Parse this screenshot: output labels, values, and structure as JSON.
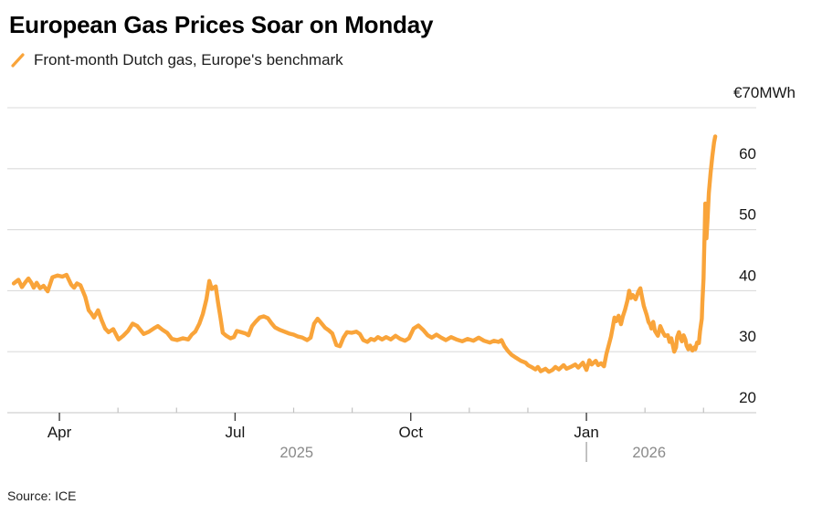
{
  "header": {
    "title": "European Gas Prices Soar on Monday",
    "legend": {
      "label": "Front-month Dutch gas, Europe's benchmark",
      "series_color": "#F9A43A"
    }
  },
  "footer": {
    "source": "Source: ICE"
  },
  "chart_data": {
    "type": "line",
    "title": "European Gas Prices Soar on Monday",
    "subtitle": "Front-month Dutch gas, Europe's benchmark",
    "x_unit": "months since 2025-03-01 (decimal)",
    "y_unit": "EUR/MWh",
    "xlim": [
      0.11,
      12.9
    ],
    "ylim": [
      20,
      70
    ],
    "grid": "horizontal",
    "legend_position": "top-left",
    "y_ticks": [
      {
        "v": 70,
        "label": "€70MWh",
        "unit_label": true
      },
      {
        "v": 60,
        "label": "60"
      },
      {
        "v": 50,
        "label": "50"
      },
      {
        "v": 40,
        "label": "40"
      },
      {
        "v": 30,
        "label": "30"
      },
      {
        "v": 20,
        "label": "20"
      }
    ],
    "x_ticks_major": [
      {
        "t": 1,
        "label": "Apr"
      },
      {
        "t": 4,
        "label": "Jul"
      },
      {
        "t": 7,
        "label": "Oct"
      },
      {
        "t": 10,
        "label": "Jan"
      }
    ],
    "x_ticks_minor": [
      2,
      3,
      5,
      6,
      8,
      9,
      11,
      12
    ],
    "year_labels": [
      {
        "t": 5.05,
        "label": "2025"
      },
      {
        "t": 11.07,
        "label": "2026"
      }
    ],
    "year_divider_t": 10,
    "colors": {
      "line": "#F9A43A",
      "grid": "#DBDBDB",
      "axis": "#C6C6C6",
      "tick_major": "#3F3F3F",
      "tick_minor": "#C2C2C2",
      "tick_label": "#161616",
      "year_label": "#8A8A8A",
      "year_divider": "#9A9A9A"
    },
    "series": [
      {
        "name": "Front-month Dutch gas (TTF)",
        "color": "#F9A43A",
        "points": [
          [
            0.22,
            41.2
          ],
          [
            0.3,
            41.8
          ],
          [
            0.36,
            40.6
          ],
          [
            0.42,
            41.4
          ],
          [
            0.47,
            42.0
          ],
          [
            0.52,
            41.3
          ],
          [
            0.56,
            40.5
          ],
          [
            0.61,
            41.3
          ],
          [
            0.67,
            40.4
          ],
          [
            0.73,
            40.8
          ],
          [
            0.8,
            39.9
          ],
          [
            0.88,
            42.2
          ],
          [
            0.97,
            42.5
          ],
          [
            1.05,
            42.3
          ],
          [
            1.12,
            42.6
          ],
          [
            1.2,
            41.0
          ],
          [
            1.25,
            40.5
          ],
          [
            1.3,
            41.2
          ],
          [
            1.36,
            40.9
          ],
          [
            1.44,
            39.0
          ],
          [
            1.5,
            36.8
          ],
          [
            1.55,
            36.2
          ],
          [
            1.59,
            35.6
          ],
          [
            1.66,
            36.8
          ],
          [
            1.72,
            35.2
          ],
          [
            1.78,
            33.8
          ],
          [
            1.84,
            33.2
          ],
          [
            1.92,
            33.7
          ],
          [
            2.01,
            32.0
          ],
          [
            2.09,
            32.6
          ],
          [
            2.17,
            33.4
          ],
          [
            2.25,
            34.6
          ],
          [
            2.33,
            34.2
          ],
          [
            2.44,
            32.9
          ],
          [
            2.53,
            33.3
          ],
          [
            2.61,
            33.8
          ],
          [
            2.68,
            34.2
          ],
          [
            2.76,
            33.6
          ],
          [
            2.84,
            33.1
          ],
          [
            2.92,
            32.1
          ],
          [
            3.01,
            31.9
          ],
          [
            3.11,
            32.2
          ],
          [
            3.2,
            32.0
          ],
          [
            3.26,
            32.8
          ],
          [
            3.32,
            33.3
          ],
          [
            3.39,
            34.6
          ],
          [
            3.45,
            36.2
          ],
          [
            3.51,
            38.6
          ],
          [
            3.56,
            41.6
          ],
          [
            3.6,
            40.3
          ],
          [
            3.67,
            40.7
          ],
          [
            3.71,
            38.0
          ],
          [
            3.75,
            35.6
          ],
          [
            3.79,
            33.1
          ],
          [
            3.85,
            32.6
          ],
          [
            3.92,
            32.2
          ],
          [
            3.98,
            32.4
          ],
          [
            4.03,
            33.4
          ],
          [
            4.1,
            33.2
          ],
          [
            4.18,
            33.0
          ],
          [
            4.23,
            32.7
          ],
          [
            4.29,
            34.2
          ],
          [
            4.35,
            34.9
          ],
          [
            4.42,
            35.6
          ],
          [
            4.49,
            35.8
          ],
          [
            4.56,
            35.5
          ],
          [
            4.62,
            34.7
          ],
          [
            4.68,
            34.0
          ],
          [
            4.76,
            33.6
          ],
          [
            4.84,
            33.3
          ],
          [
            4.92,
            33.0
          ],
          [
            5.0,
            32.8
          ],
          [
            5.07,
            32.5
          ],
          [
            5.15,
            32.3
          ],
          [
            5.23,
            31.9
          ],
          [
            5.29,
            32.3
          ],
          [
            5.35,
            34.6
          ],
          [
            5.41,
            35.4
          ],
          [
            5.48,
            34.6
          ],
          [
            5.54,
            33.9
          ],
          [
            5.6,
            33.5
          ],
          [
            5.66,
            33.0
          ],
          [
            5.73,
            31.1
          ],
          [
            5.79,
            30.9
          ],
          [
            5.85,
            32.3
          ],
          [
            5.91,
            33.2
          ],
          [
            5.99,
            33.1
          ],
          [
            6.07,
            33.3
          ],
          [
            6.13,
            32.9
          ],
          [
            6.19,
            31.9
          ],
          [
            6.26,
            31.6
          ],
          [
            6.32,
            32.1
          ],
          [
            6.38,
            31.9
          ],
          [
            6.44,
            32.4
          ],
          [
            6.51,
            32.0
          ],
          [
            6.58,
            32.4
          ],
          [
            6.66,
            32.0
          ],
          [
            6.74,
            32.6
          ],
          [
            6.82,
            32.1
          ],
          [
            6.9,
            31.8
          ],
          [
            6.97,
            32.2
          ],
          [
            7.05,
            33.8
          ],
          [
            7.13,
            34.3
          ],
          [
            7.21,
            33.6
          ],
          [
            7.29,
            32.7
          ],
          [
            7.36,
            32.3
          ],
          [
            7.44,
            32.8
          ],
          [
            7.52,
            32.3
          ],
          [
            7.6,
            31.9
          ],
          [
            7.69,
            32.4
          ],
          [
            7.78,
            32.0
          ],
          [
            7.88,
            31.7
          ],
          [
            7.97,
            32.1
          ],
          [
            8.07,
            31.8
          ],
          [
            8.16,
            32.3
          ],
          [
            8.25,
            31.8
          ],
          [
            8.35,
            31.5
          ],
          [
            8.42,
            31.8
          ],
          [
            8.5,
            31.6
          ],
          [
            8.55,
            31.9
          ],
          [
            8.6,
            30.9
          ],
          [
            8.66,
            30.1
          ],
          [
            8.72,
            29.5
          ],
          [
            8.8,
            29.0
          ],
          [
            8.88,
            28.5
          ],
          [
            8.96,
            28.2
          ],
          [
            9.0,
            27.8
          ],
          [
            9.06,
            27.5
          ],
          [
            9.13,
            27.1
          ],
          [
            9.17,
            27.5
          ],
          [
            9.22,
            26.8
          ],
          [
            9.3,
            27.2
          ],
          [
            9.36,
            26.7
          ],
          [
            9.42,
            27.0
          ],
          [
            9.47,
            27.5
          ],
          [
            9.53,
            27.1
          ],
          [
            9.61,
            27.8
          ],
          [
            9.66,
            27.2
          ],
          [
            9.73,
            27.5
          ],
          [
            9.81,
            27.9
          ],
          [
            9.86,
            27.4
          ],
          [
            9.94,
            28.2
          ],
          [
            10.0,
            27.0
          ],
          [
            10.05,
            28.6
          ],
          [
            10.09,
            27.9
          ],
          [
            10.16,
            28.5
          ],
          [
            10.2,
            27.8
          ],
          [
            10.25,
            28.1
          ],
          [
            10.3,
            27.6
          ],
          [
            10.34,
            29.6
          ],
          [
            10.39,
            31.4
          ],
          [
            10.42,
            32.5
          ],
          [
            10.45,
            34.0
          ],
          [
            10.48,
            35.6
          ],
          [
            10.51,
            35.0
          ],
          [
            10.55,
            35.9
          ],
          [
            10.59,
            34.5
          ],
          [
            10.62,
            35.7
          ],
          [
            10.66,
            36.9
          ],
          [
            10.7,
            38.4
          ],
          [
            10.73,
            40.0
          ],
          [
            10.76,
            38.8
          ],
          [
            10.79,
            39.3
          ],
          [
            10.84,
            38.6
          ],
          [
            10.89,
            39.9
          ],
          [
            10.92,
            40.4
          ],
          [
            10.95,
            38.9
          ],
          [
            10.98,
            37.5
          ],
          [
            11.03,
            36.0
          ],
          [
            11.06,
            34.9
          ],
          [
            11.09,
            34.4
          ],
          [
            11.11,
            33.8
          ],
          [
            11.14,
            34.9
          ],
          [
            11.17,
            33.4
          ],
          [
            11.22,
            32.6
          ],
          [
            11.26,
            34.2
          ],
          [
            11.31,
            33.1
          ],
          [
            11.34,
            32.6
          ],
          [
            11.39,
            32.7
          ],
          [
            11.42,
            31.6
          ],
          [
            11.45,
            32.2
          ],
          [
            11.5,
            30.0
          ],
          [
            11.53,
            30.7
          ],
          [
            11.55,
            32.4
          ],
          [
            11.58,
            33.2
          ],
          [
            11.61,
            32.2
          ],
          [
            11.63,
            31.7
          ],
          [
            11.66,
            32.7
          ],
          [
            11.69,
            32.0
          ],
          [
            11.71,
            31.0
          ],
          [
            11.74,
            30.4
          ],
          [
            11.77,
            31.0
          ],
          [
            11.78,
            30.7
          ],
          [
            11.81,
            30.2
          ],
          [
            11.84,
            30.7
          ],
          [
            11.86,
            30.4
          ],
          [
            11.89,
            31.5
          ],
          [
            11.92,
            31.4
          ],
          [
            11.94,
            33.4
          ],
          [
            11.97,
            35.4
          ],
          [
            11.98,
            38.0
          ],
          [
            12.0,
            42.0
          ],
          [
            12.01,
            46.0
          ],
          [
            12.02,
            50.0
          ],
          [
            12.03,
            54.3
          ],
          [
            12.05,
            48.6
          ],
          [
            12.07,
            52.0
          ],
          [
            12.09,
            56.0
          ],
          [
            12.12,
            59.3
          ],
          [
            12.15,
            62.0
          ],
          [
            12.18,
            64.3
          ],
          [
            12.2,
            65.3
          ]
        ]
      }
    ]
  }
}
